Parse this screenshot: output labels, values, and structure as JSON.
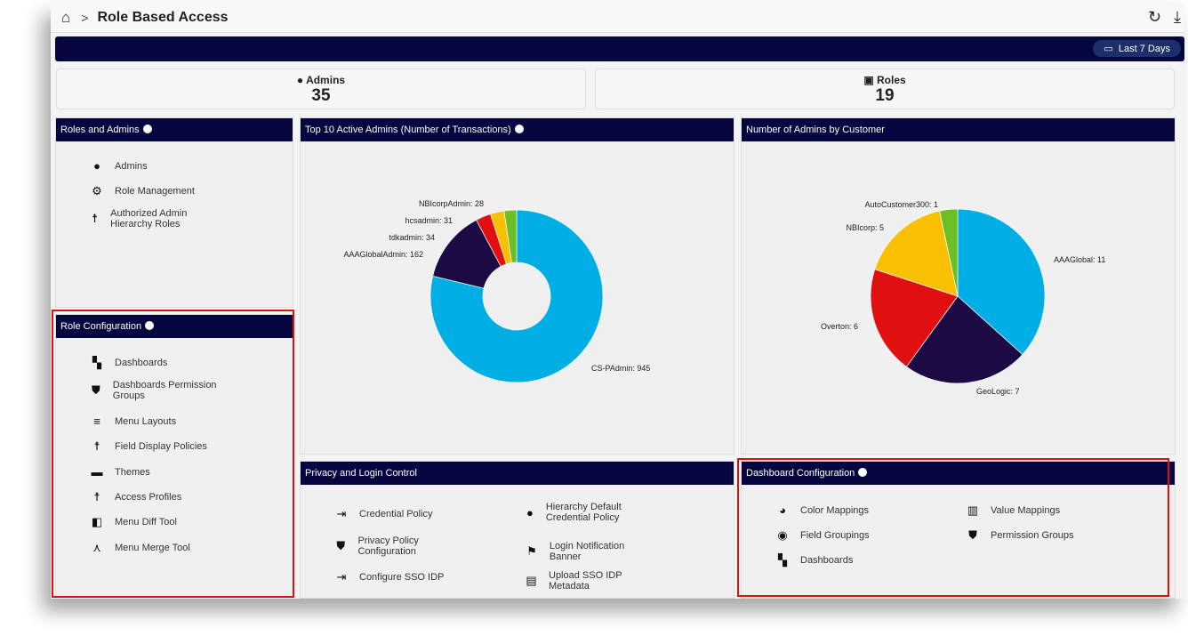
{
  "header": {
    "title": "Role Based Access",
    "date_range": "Last 7 Days"
  },
  "kpis": [
    {
      "label": "Admins",
      "value": "35"
    },
    {
      "label": "Roles",
      "value": "19"
    }
  ],
  "roles_admins": {
    "title": "Roles and Admins",
    "items": [
      {
        "label": "Admins",
        "icon": "admin-pin-icon"
      },
      {
        "label": "Role Management",
        "icon": "gear-icon"
      },
      {
        "label": "Authorized Admin Hierarchy Roles",
        "icon": "person-icon"
      }
    ]
  },
  "role_config": {
    "title": "Role Configuration",
    "items": [
      {
        "label": "Dashboards",
        "icon": "dashboard-icon"
      },
      {
        "label": "Dashboards Permission Groups",
        "icon": "shield-icon"
      },
      {
        "label": "Menu Layouts",
        "icon": "menu-icon"
      },
      {
        "label": "Field Display Policies",
        "icon": "person-icon"
      },
      {
        "label": "Themes",
        "icon": "theme-icon"
      },
      {
        "label": "Access Profiles",
        "icon": "person-icon"
      },
      {
        "label": "Menu Diff Tool",
        "icon": "diff-icon"
      },
      {
        "label": "Menu Merge Tool",
        "icon": "merge-icon"
      }
    ]
  },
  "privacy": {
    "title": "Privacy and Login Control",
    "items": [
      {
        "label": "Credential Policy",
        "icon": "login-icon"
      },
      {
        "label": "Hierarchy Default Credential Policy",
        "icon": "cookie-icon"
      },
      {
        "label": "Privacy Policy Configuration",
        "icon": "shield-icon"
      },
      {
        "label": "Login Notification Banner",
        "icon": "flag-icon"
      },
      {
        "label": "Configure SSO IDP",
        "icon": "login-icon"
      },
      {
        "label": "Upload SSO IDP Metadata",
        "icon": "list-icon"
      }
    ]
  },
  "dash_config": {
    "title": "Dashboard Configuration",
    "items": [
      {
        "label": "Color Mappings",
        "icon": "palette-icon"
      },
      {
        "label": "Value Mappings",
        "icon": "book-icon"
      },
      {
        "label": "Field Groupings",
        "icon": "group-icon"
      },
      {
        "label": "Permission Groups",
        "icon": "shield-icon"
      },
      {
        "label": "Dashboards",
        "icon": "dashboard-icon"
      }
    ]
  },
  "chart_data": [
    {
      "type": "pie",
      "donut": true,
      "title": "Top 10 Active Admins (Number of Transactions)",
      "categories": [
        "CS-PAdmin",
        "AAAGlobalAdmin",
        "tdkadmin",
        "hcsadmin",
        "NBIcorpAdmin"
      ],
      "values": [
        945,
        162,
        34,
        31,
        28
      ],
      "colors": [
        "#00aee6",
        "#1c0a45",
        "#e01010",
        "#f8c000",
        "#6bbf23"
      ]
    },
    {
      "type": "pie",
      "title": "Number of Admins by Customer",
      "categories": [
        "AAAGlobal",
        "GeoLogic",
        "Overton",
        "NBIcorp",
        "AutoCustomer300"
      ],
      "values": [
        11,
        7,
        6,
        5,
        1
      ],
      "colors": [
        "#00aee6",
        "#1c0a45",
        "#e01010",
        "#f8c000",
        "#6bbf23"
      ]
    }
  ]
}
